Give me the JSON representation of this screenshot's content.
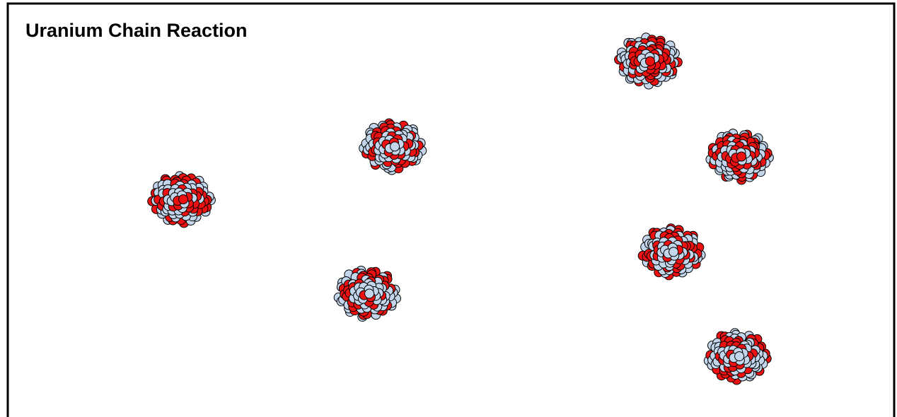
{
  "header": {
    "title": "Uranium Chain Reaction"
  }
}
